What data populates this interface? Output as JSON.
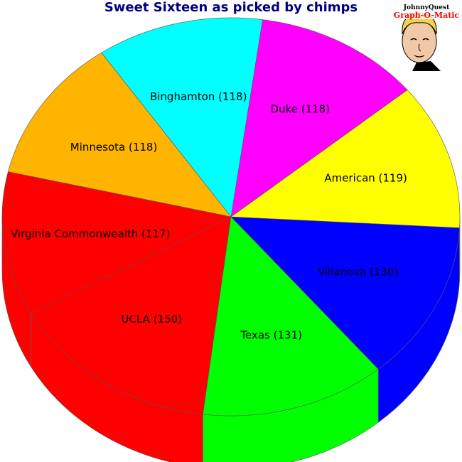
{
  "chart_data": {
    "type": "pie",
    "title": "Sweet Sixteen as picked by chimps",
    "slices": [
      {
        "label": "UCLA (150)",
        "name": "UCLA",
        "value": 150,
        "color": "#ff0000"
      },
      {
        "label": "Texas (131)",
        "name": "Texas",
        "value": 131,
        "color": "#00ff00"
      },
      {
        "label": "Villanova (130)",
        "name": "Villanova",
        "value": 130,
        "color": "#0000ff"
      },
      {
        "label": "American (119)",
        "name": "American",
        "value": 119,
        "color": "#ffff00"
      },
      {
        "label": "Duke (118)",
        "name": "Duke",
        "value": 118,
        "color": "#ff00ff"
      },
      {
        "label": "Binghamton (118)",
        "name": "Binghamton",
        "value": 118,
        "color": "#00ffff"
      },
      {
        "label": "Minnesota (118)",
        "name": "Minnesota",
        "value": 118,
        "color": "#ffb400"
      },
      {
        "label": "Virginia Commonwealth (117)",
        "name": "Virginia Commonwealth",
        "value": 117,
        "color": "#ff0000"
      }
    ],
    "style": "3d-tilted"
  },
  "logo": {
    "line1": "JohnnyQuest",
    "line2": "Graph-O-Matic"
  }
}
